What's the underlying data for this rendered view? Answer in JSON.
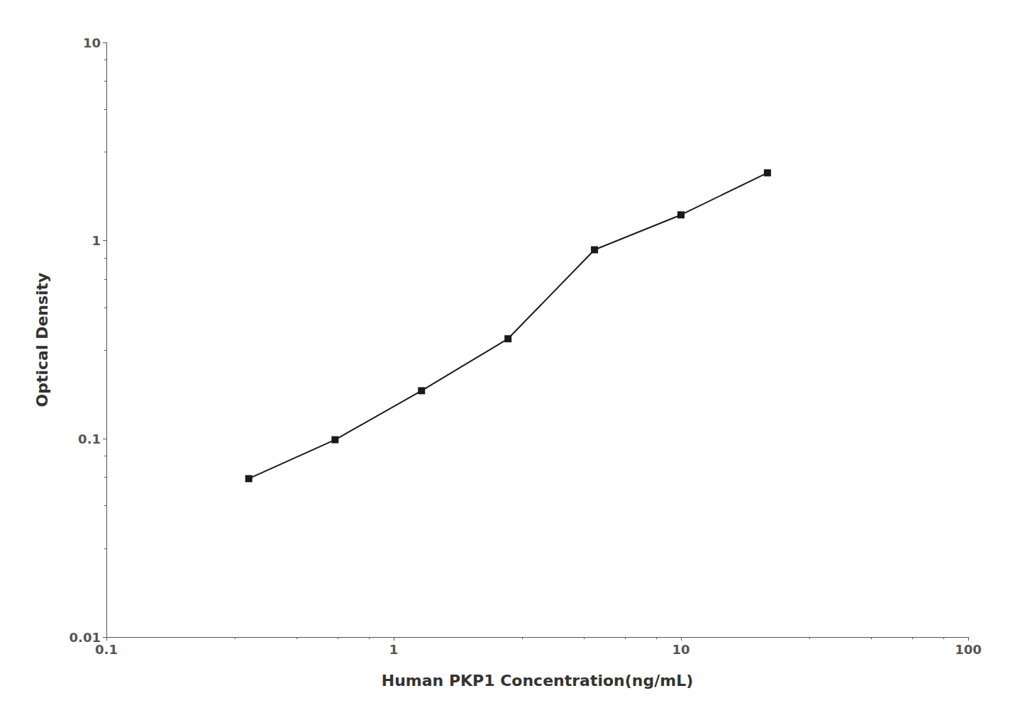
{
  "chart_data": {
    "type": "line",
    "x": [
      0.313,
      0.625,
      1.25,
      2.5,
      5.0,
      10.0,
      20.0
    ],
    "values": [
      0.063,
      0.099,
      0.175,
      0.32,
      0.9,
      1.35,
      2.2
    ],
    "xlabel": "Human PKP1 Concentration(ng/mL)",
    "ylabel": "Optical Density",
    "xlim": [
      0.1,
      100
    ],
    "ylim": [
      0.01,
      10
    ],
    "xticks": [
      0.1,
      1,
      10,
      100
    ],
    "yticks": [
      0.01,
      0.1,
      1,
      10
    ],
    "log": true,
    "grid": false,
    "color": "#1a1a1a",
    "marker": "square"
  }
}
